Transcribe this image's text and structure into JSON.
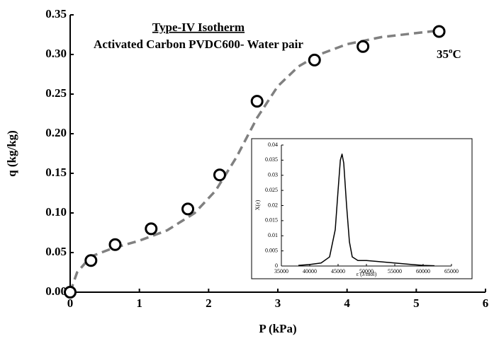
{
  "chart_data": [
    {
      "type": "scatter",
      "title": "Type-IV Isotherm",
      "subtitle": "Activated Carbon PVDC600- Water pair",
      "annotation": [
        "35",
        "o",
        "C"
      ],
      "x_label": "P (kPa)",
      "y_label": "q (kg/kg)",
      "xlim": [
        0,
        6
      ],
      "ylim": [
        0,
        0.35
      ],
      "xticks": [
        0,
        1,
        2,
        3,
        4,
        5,
        6
      ],
      "yticks": [
        {
          "value": 0,
          "label": "0.00"
        },
        {
          "value": 0.05,
          "label": "0.05"
        },
        {
          "value": 0.1,
          "label": "0.10"
        },
        {
          "value": 0.15,
          "label": "0.15"
        },
        {
          "value": 0.2,
          "label": "0.20"
        },
        {
          "value": 0.25,
          "label": "0.25"
        },
        {
          "value": 0.3,
          "label": "0.30"
        },
        {
          "value": 0.35,
          "label": "0.35"
        }
      ],
      "series": [
        {
          "mode": "line",
          "dashed": true,
          "color": "#808080",
          "x": [
            0,
            0.1,
            0.3,
            0.6,
            1.0,
            1.4,
            1.8,
            2.1,
            2.4,
            2.7,
            3.0,
            3.3,
            3.6,
            4.0,
            4.5,
            5.0,
            5.4
          ],
          "values": [
            0,
            0.025,
            0.045,
            0.055,
            0.065,
            0.078,
            0.1,
            0.128,
            0.17,
            0.22,
            0.26,
            0.285,
            0.3,
            0.313,
            0.322,
            0.327,
            0.331
          ]
        },
        {
          "mode": "markers",
          "color": "#000000",
          "x": [
            0,
            0.3,
            0.65,
            1.17,
            1.7,
            2.16,
            2.7,
            3.53,
            4.23,
            5.33
          ],
          "values": [
            0,
            0.04,
            0.06,
            0.08,
            0.105,
            0.148,
            0.241,
            0.293,
            0.31,
            0.329
          ]
        }
      ]
    },
    {
      "type": "line",
      "x_label": "ε (J/mol)",
      "y_label": "X(ε)",
      "xlim": [
        35000,
        65000
      ],
      "ylim": [
        0,
        0.04
      ],
      "xticks": [
        35000,
        40000,
        45000,
        50000,
        55000,
        60000,
        65000
      ],
      "yticks": [
        0,
        0.005,
        0.01,
        0.015,
        0.02,
        0.025,
        0.03,
        0.035,
        0.04
      ],
      "series": [
        {
          "mode": "line",
          "color": "#000000",
          "x": [
            38000,
            40000,
            42000,
            43500,
            44500,
            45000,
            45400,
            45700,
            46000,
            46500,
            47000,
            47500,
            48500,
            50000,
            52000,
            55000,
            58000,
            60000,
            62000
          ],
          "values": [
            0.0002,
            0.0005,
            0.001,
            0.003,
            0.012,
            0.025,
            0.035,
            0.037,
            0.034,
            0.02,
            0.008,
            0.003,
            0.0018,
            0.0018,
            0.0015,
            0.001,
            0.0005,
            0.0002,
            0.0001
          ]
        }
      ]
    }
  ]
}
